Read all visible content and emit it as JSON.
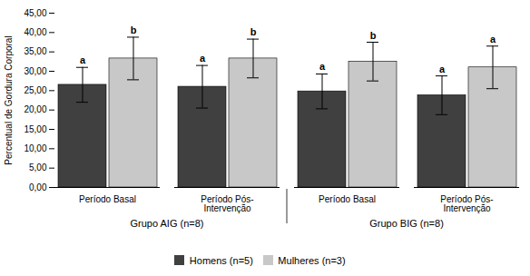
{
  "chart_data": {
    "type": "bar",
    "ylabel": "Percentual de Gordura Corporal",
    "categories": [
      "Período Basal",
      "Período Pós-\nIntervenção",
      "Período Basal",
      "Período Pós-\nIntervenção"
    ],
    "category_groups": [
      "Grupo AIG (n=8)",
      "Grupo AIG (n=8)",
      "Grupo BIG (n=8)",
      "Grupo BIG (n=8)"
    ],
    "series": [
      {
        "name": "Homens (n=5)",
        "color": "#404040",
        "values": [
          26.5,
          26.0,
          24.8,
          23.8
        ],
        "errors": [
          4.5,
          5.5,
          4.5,
          5.0
        ],
        "letters": [
          "a",
          "a",
          "a",
          "a"
        ]
      },
      {
        "name": "Mulheres (n=3)",
        "color": "#c8c8c8",
        "values": [
          33.3,
          33.3,
          32.5,
          31.0
        ],
        "errors": [
          5.5,
          5.0,
          5.0,
          5.5
        ],
        "letters": [
          "b",
          "b",
          "b",
          "a"
        ]
      }
    ],
    "ylim": [
      0,
      45
    ],
    "yticks": [
      {
        "value": 0.0,
        "label": "0,00"
      },
      {
        "value": 5.0,
        "label": "5,00"
      },
      {
        "value": 10.0,
        "label": "10,00"
      },
      {
        "value": 15.0,
        "label": "15,00"
      },
      {
        "value": 20.0,
        "label": "20,00"
      },
      {
        "value": 25.0,
        "label": "25,00"
      },
      {
        "value": 30.0,
        "label": "30,00"
      },
      {
        "value": 35.0,
        "label": "35,00"
      },
      {
        "value": 40.0,
        "label": "40,00"
      },
      {
        "value": 45.0,
        "label": "45,00"
      }
    ],
    "grid": false,
    "legend": "bottom"
  }
}
